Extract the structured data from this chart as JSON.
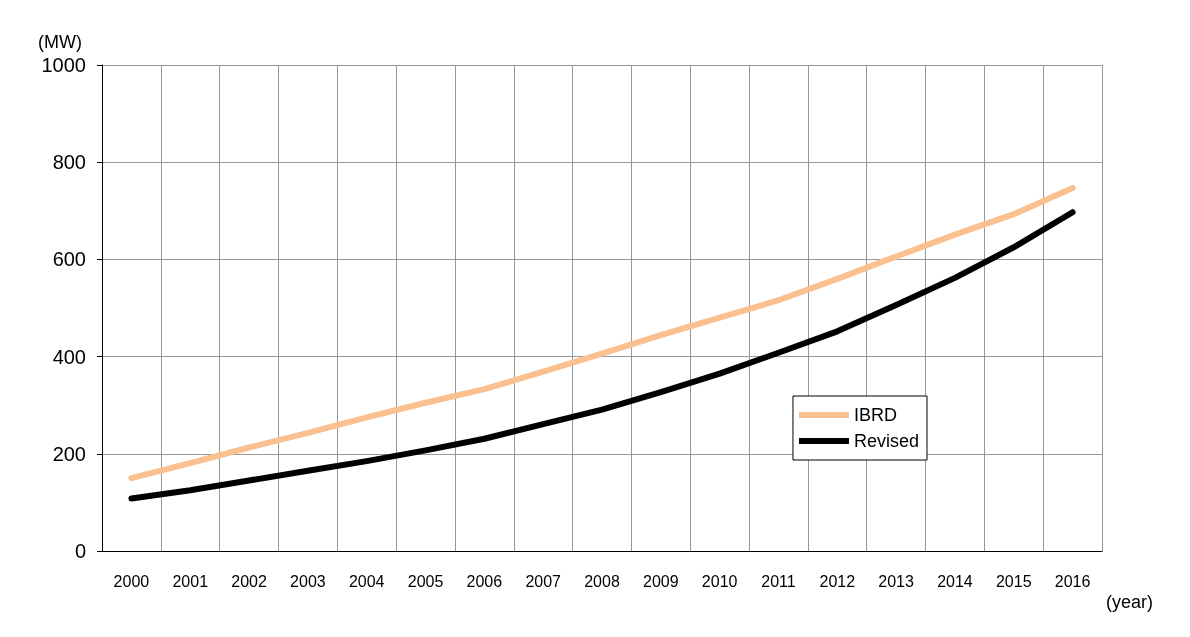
{
  "chart_data": {
    "type": "line",
    "xlabel": "(year)",
    "ylabel": "(MW)",
    "categories": [
      "2000",
      "2001",
      "2002",
      "2003",
      "2004",
      "2005",
      "2006",
      "2007",
      "2008",
      "2009",
      "2010",
      "2011",
      "2012",
      "2013",
      "2014",
      "2015",
      "2016"
    ],
    "series": [
      {
        "name": "IBRD",
        "color": "#fac090",
        "values": [
          150,
          181,
          213,
          243,
          275,
          305,
          333,
          369,
          406,
          444,
          480,
          516,
          560,
          606,
          651,
          693,
          747
        ]
      },
      {
        "name": "Revised",
        "color": "#000000",
        "values": [
          108,
          125,
          145,
          165,
          185,
          207,
          231,
          261,
          291,
          327,
          365,
          408,
          452,
          506,
          562,
          625,
          697
        ]
      }
    ],
    "ylim": [
      0,
      1000
    ],
    "yticks": [
      0,
      200,
      400,
      600,
      800,
      1000
    ],
    "grid": true,
    "legend": "right",
    "marker": "none",
    "line_style": "solid"
  }
}
